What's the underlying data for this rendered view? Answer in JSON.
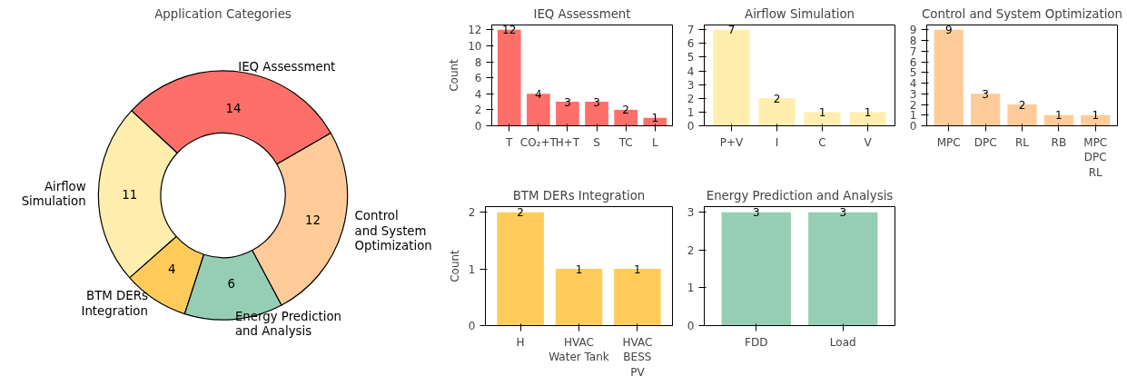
{
  "chart_data": [
    {
      "type": "donut",
      "title": "Application Categories",
      "categories": [
        "IEQ Assessment",
        "Airflow\nSimulation",
        "BTM DERs\nIntegration",
        "Energy Prediction\nand Analysis",
        "Control\nand System\nOptimization"
      ],
      "values": [
        14,
        11,
        4,
        6,
        12
      ],
      "colors": [
        "#ff6f69",
        "#ffeead",
        "#ffcc5c",
        "#96ceb4",
        "#ffcc99"
      ],
      "data_labels": true
    },
    {
      "type": "bar",
      "title": "IEQ Assessment",
      "ylabel": "Count",
      "categories": [
        "T",
        "CO₂+T",
        "H+T",
        "S",
        "TC",
        "L"
      ],
      "values": [
        12,
        4,
        3,
        3,
        2,
        1
      ],
      "color": "#ff6f69",
      "ylim": [
        0,
        12.6
      ],
      "yticks": [
        0,
        2,
        4,
        6,
        8,
        10,
        12
      ],
      "data_labels": true
    },
    {
      "type": "bar",
      "title": "Airflow Simulation",
      "categories": [
        "P+V",
        "I",
        "C",
        "V"
      ],
      "values": [
        7,
        2,
        1,
        1
      ],
      "color": "#ffeead",
      "ylim": [
        0,
        7.35
      ],
      "yticks": [
        0,
        1,
        2,
        3,
        4,
        5,
        6,
        7
      ],
      "data_labels": true
    },
    {
      "type": "bar",
      "title": "Control and System Optimization",
      "categories": [
        "MPC",
        "DPC",
        "RL",
        "RB",
        "MPC\nDPC\nRL"
      ],
      "values": [
        9,
        3,
        2,
        1,
        1
      ],
      "color": "#ffcc99",
      "ylim": [
        0,
        9.45
      ],
      "yticks": [
        0,
        1,
        2,
        3,
        4,
        5,
        6,
        7,
        8,
        9
      ],
      "data_labels": true
    },
    {
      "type": "bar",
      "title": "BTM DERs Integration",
      "ylabel": "Count",
      "categories": [
        "H",
        "HVAC\nWater Tank",
        "HVAC\nBESS\nPV"
      ],
      "values": [
        2,
        1,
        1
      ],
      "color": "#ffcc5c",
      "ylim": [
        0,
        2.1
      ],
      "yticks": [
        0,
        1,
        2
      ],
      "data_labels": true
    },
    {
      "type": "bar",
      "title": "Energy Prediction and Analysis",
      "categories": [
        "FDD",
        "Load"
      ],
      "values": [
        3,
        3
      ],
      "color": "#96ceb4",
      "ylim": [
        0,
        3.15
      ],
      "yticks": [
        0,
        1,
        2,
        3
      ],
      "data_labels": true
    }
  ]
}
